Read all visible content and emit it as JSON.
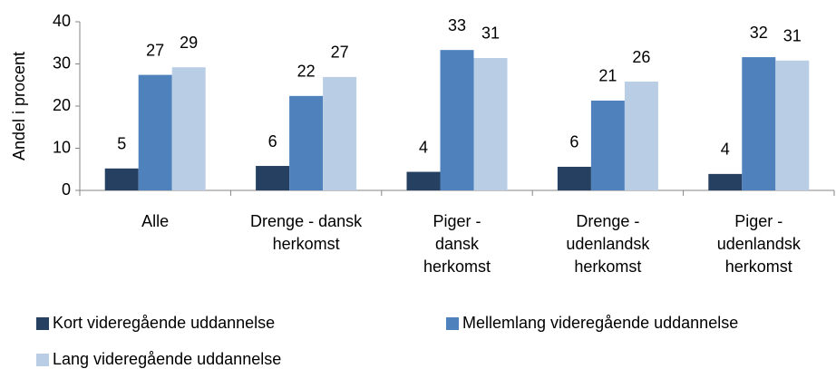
{
  "chart_data": {
    "type": "bar",
    "y_label": "Andel i procent",
    "categories": [
      "Alle",
      "Drenge - dansk\nherkomst",
      "Piger -\ndansk\nherkomst",
      "Drenge -\nudenlandsk\nherkomst",
      "Piger -\nudenlandsk\nherkomst"
    ],
    "series": [
      {
        "name": "Kort videregående uddannelse",
        "color": "#254061",
        "values": [
          5.2,
          5.8,
          4.4,
          5.6,
          3.9
        ],
        "value_labels": [
          "5",
          "6",
          "4",
          "6",
          "4"
        ]
      },
      {
        "name": "Mellemlang videregående uddannelse",
        "color": "#4f81bd",
        "values": [
          27.4,
          22.4,
          33.3,
          21.3,
          31.6
        ],
        "value_labels": [
          "27",
          "22",
          "33",
          "21",
          "32"
        ]
      },
      {
        "name": "Lang videregående uddannelse",
        "color": "#b9cde5",
        "values": [
          29.2,
          26.9,
          31.4,
          25.8,
          30.8
        ],
        "value_labels": [
          "29",
          "27",
          "31",
          "26",
          "31"
        ]
      }
    ],
    "ylim": [
      0,
      40
    ],
    "yticks": [
      0,
      10,
      20,
      30,
      40
    ],
    "grid": false
  }
}
